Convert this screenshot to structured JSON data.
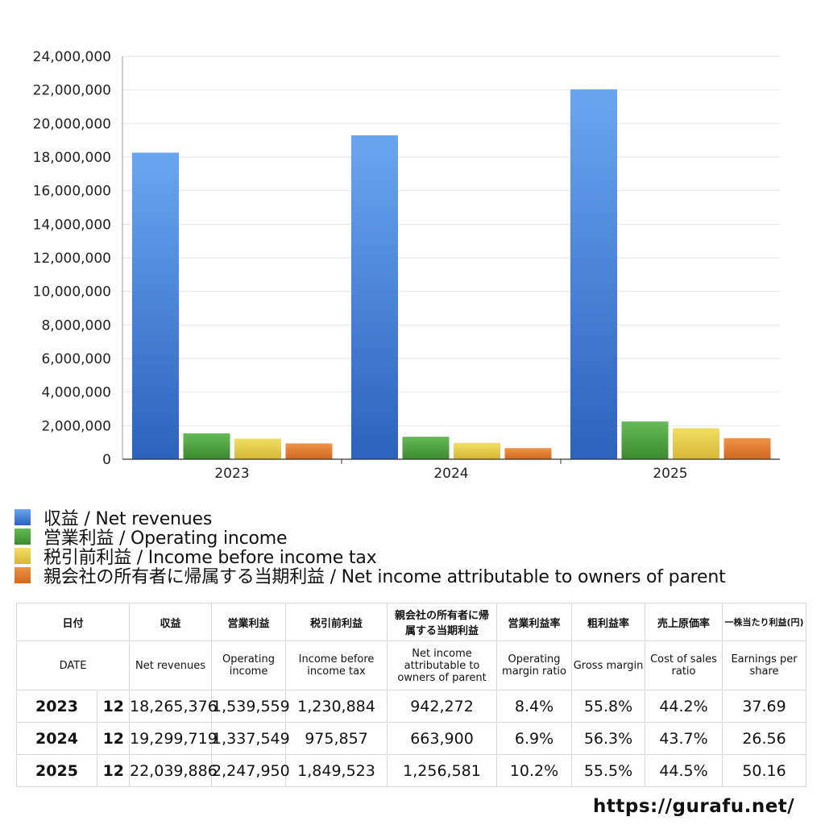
{
  "chart_data": {
    "type": "bar",
    "title": "",
    "xlabel": "",
    "ylabel": "",
    "ylim": [
      0,
      24000000
    ],
    "ytick_step": 2000000,
    "grid": true,
    "categories": [
      "2023",
      "2024",
      "2025"
    ],
    "series": [
      {
        "name": "収益 / Net revenues",
        "color_top": "#6aa6f0",
        "color_bottom": "#2c62bd",
        "values": [
          18265376,
          19299719,
          22039886
        ]
      },
      {
        "name": "営業利益 / Operating income",
        "color_top": "#64bb55",
        "color_bottom": "#3c8a30",
        "values": [
          1539559,
          1337549,
          2247950
        ]
      },
      {
        "name": "税引前利益 / Income before income tax",
        "color_top": "#f0df64",
        "color_bottom": "#d7b733",
        "values": [
          1230884,
          975857,
          1849523
        ]
      },
      {
        "name": "親会社の所有者に帰属する当期利益 / Net income attributable to owners of parent",
        "color_top": "#ee9446",
        "color_bottom": "#d2681f",
        "values": [
          942272,
          663900,
          1256581
        ]
      }
    ],
    "legend_position": "bottom-left"
  },
  "table": {
    "header_jp": [
      "日付",
      "収益",
      "営業利益",
      "税引前利益",
      "親会社の所有者に帰属する当期利益",
      "営業利益率",
      "粗利益率",
      "売上原価率",
      "一株当たり利益(円)"
    ],
    "header_en": [
      "DATE",
      "Net revenues",
      "Operating income",
      "Income before income tax",
      "Net income attributable to owners of parent",
      "Operating margin ratio",
      "Gross margin",
      "Cost of sales ratio",
      "Earnings per share"
    ],
    "rows": [
      {
        "year": "2023",
        "month": "12",
        "revenues": "18,265,376",
        "operating": "1,539,559",
        "pretax": "1,230,884",
        "net": "942,272",
        "op_margin": "8.4%",
        "gross": "55.8%",
        "cost": "44.2%",
        "eps": "37.69"
      },
      {
        "year": "2024",
        "month": "12",
        "revenues": "19,299,719",
        "operating": "1,337,549",
        "pretax": "975,857",
        "net": "663,900",
        "op_margin": "6.9%",
        "gross": "56.3%",
        "cost": "43.7%",
        "eps": "26.56"
      },
      {
        "year": "2025",
        "month": "12",
        "revenues": "22,039,886",
        "operating": "2,247,950",
        "pretax": "1,849,523",
        "net": "1,256,581",
        "op_margin": "10.2%",
        "gross": "55.5%",
        "cost": "44.5%",
        "eps": "50.16"
      }
    ]
  },
  "footer": {
    "url": "https://gurafu.net/"
  }
}
